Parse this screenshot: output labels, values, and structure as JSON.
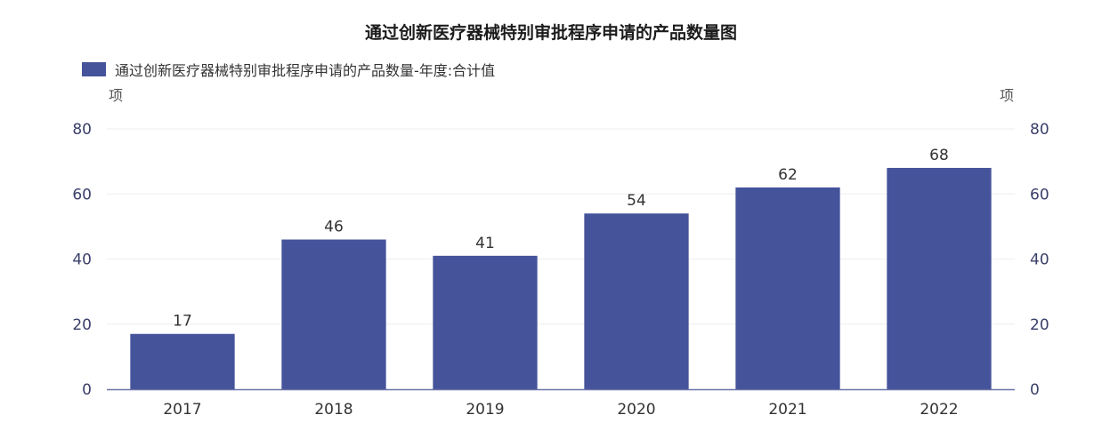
{
  "chart_data": {
    "type": "bar",
    "title": "通过创新医疗器械特别审批程序申请的产品数量图",
    "legend": "通过创新医疗器械特别审批程序申请的产品数量-年度:合计值",
    "ylabel_left": "项",
    "ylabel_right": "项",
    "categories": [
      "2017",
      "2018",
      "2019",
      "2020",
      "2021",
      "2022"
    ],
    "values": [
      17,
      46,
      41,
      54,
      62,
      68
    ],
    "ylim": [
      0,
      80
    ],
    "yticks": [
      0,
      20,
      40,
      60,
      80
    ],
    "grid": true,
    "legend_position": "top-left",
    "color": "#45539a"
  }
}
